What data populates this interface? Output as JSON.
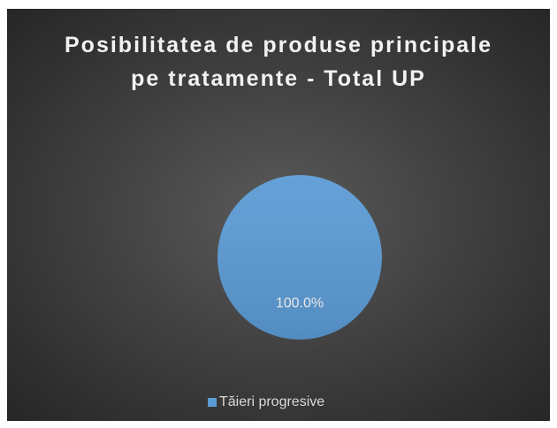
{
  "chart_data": {
    "type": "pie",
    "title": "Posibilitatea de produse principale pe tratamente - Total UP",
    "categories": [
      "Tăieri progresive"
    ],
    "values": [
      100
    ],
    "value_labels": [
      "100.0%"
    ],
    "colors": [
      "#5b9bd5"
    ],
    "legend": "bottom"
  }
}
